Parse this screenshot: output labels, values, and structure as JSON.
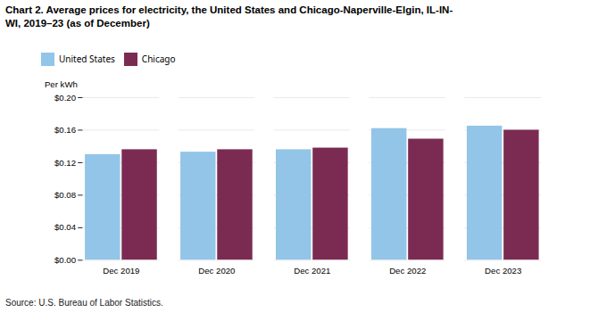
{
  "chart_data": {
    "type": "bar",
    "title": "Chart 2. Average prices for electricity, the United States and Chicago-Naperville-Elgin, IL-IN-\nWI, 2019–23 (as of December)",
    "ylabel": "Per kWh",
    "source": "Source: U.S. Bureau of Labor Statistics.",
    "categories": [
      "Dec 2019",
      "Dec 2020",
      "Dec 2021",
      "Dec 2022",
      "Dec 2023"
    ],
    "series": [
      {
        "name": "United States",
        "color": "#92C5E8",
        "values": [
          0.13,
          0.133,
          0.136,
          0.162,
          0.165
        ]
      },
      {
        "name": "Chicago",
        "color": "#7B2B52",
        "values": [
          0.136,
          0.136,
          0.138,
          0.149,
          0.16
        ]
      }
    ],
    "ylim": [
      0.0,
      0.2
    ],
    "yticks": [
      {
        "value": 0.0,
        "label": "$0.00"
      },
      {
        "value": 0.04,
        "label": "$0.04"
      },
      {
        "value": 0.08,
        "label": "$0.08"
      },
      {
        "value": 0.12,
        "label": "$0.12"
      },
      {
        "value": 0.16,
        "label": "$0.16"
      },
      {
        "value": 0.2,
        "label": "$0.20"
      }
    ],
    "grid": true,
    "legend": "top"
  }
}
